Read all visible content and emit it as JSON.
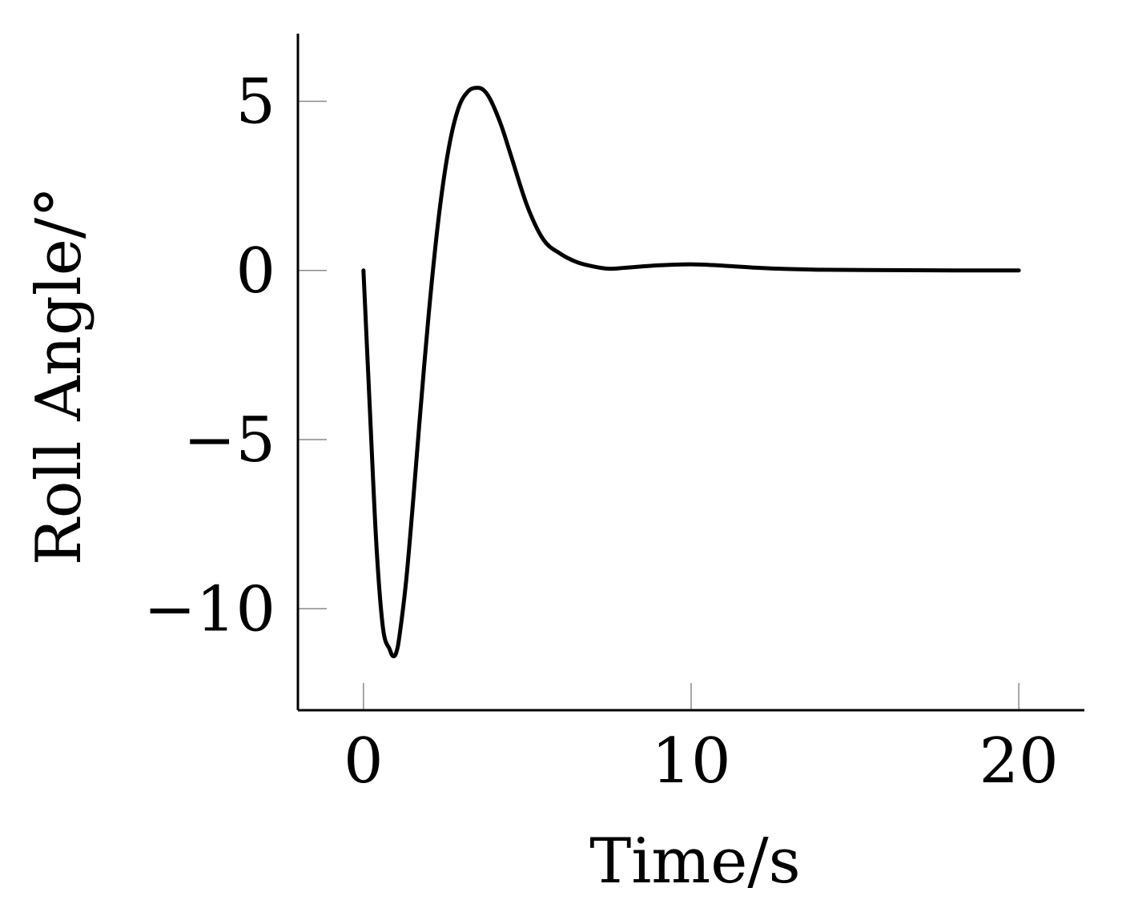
{
  "chart_data": {
    "type": "line",
    "title": "",
    "xlabel": "Time/s",
    "ylabel": "Roll Angle/°",
    "xlim": [
      -2,
      22
    ],
    "ylim": [
      -13,
      7
    ],
    "xticks": [
      0,
      10,
      20
    ],
    "yticks": [
      -10,
      -5,
      0,
      5
    ],
    "xtick_labels": [
      "0",
      "10",
      "20"
    ],
    "ytick_labels": [
      "−10",
      "−5",
      "0",
      "5"
    ],
    "grid": false,
    "legend": false,
    "series": [
      {
        "color": "#000000",
        "x": [
          0,
          0.2,
          0.4,
          0.6,
          0.8,
          0.9,
          1.0,
          1.1,
          1.3,
          1.5,
          1.7,
          2.0,
          2.3,
          2.6,
          2.9,
          3.2,
          3.5,
          3.7,
          3.9,
          4.2,
          4.5,
          5.0,
          5.5,
          6.0,
          6.5,
          7.0,
          7.5,
          8.0,
          9.0,
          10.0,
          11.0,
          12.0,
          13.0,
          14.0,
          16.0,
          18.0,
          20.0
        ],
        "y": [
          0,
          -4.2,
          -8.2,
          -10.6,
          -11.2,
          -11.4,
          -11.3,
          -10.8,
          -9.2,
          -7.0,
          -4.6,
          -1.2,
          1.6,
          3.6,
          4.8,
          5.3,
          5.4,
          5.3,
          5.0,
          4.3,
          3.4,
          1.9,
          0.9,
          0.5,
          0.25,
          0.12,
          0.05,
          0.08,
          0.15,
          0.18,
          0.14,
          0.08,
          0.04,
          0.02,
          0.01,
          0.0,
          0.0
        ]
      }
    ]
  }
}
